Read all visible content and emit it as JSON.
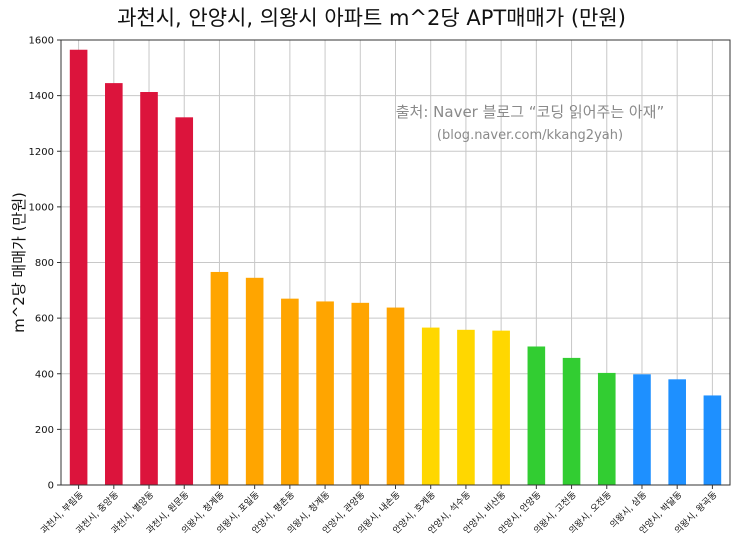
{
  "chart_data": {
    "type": "bar",
    "title": "과천시, 안양시, 의왕시 아파트 m^2당 APT매매가 (만원)",
    "xlabel": "",
    "ylabel": "m^2당 매매가 (만원)",
    "ylim": [
      0,
      1600
    ],
    "yticks": [
      0,
      200,
      400,
      600,
      800,
      1000,
      1200,
      1400,
      1600
    ],
    "grid": true,
    "categories": [
      "과천시, 부림동",
      "과천시, 중앙동",
      "과천시, 별양동",
      "과천시, 원문동",
      "의왕시, 청계동",
      "의왕시, 포일동",
      "안양시, 평촌동",
      "의왕시, 청계동",
      "안양시, 관양동",
      "의왕시, 내손동",
      "안양시, 호계동",
      "안양시, 석수동",
      "안양시, 비산동",
      "안양시, 안양동",
      "의왕시, 고천동",
      "의왕시, 오전동",
      "의왕시, 삼동",
      "안양시, 박달동",
      "의왕시, 왕곡동"
    ],
    "values": [
      1565,
      1445,
      1413,
      1322,
      766,
      745,
      670,
      660,
      655,
      638,
      566,
      558,
      555,
      498,
      457,
      403,
      398,
      380,
      322
    ],
    "colors": [
      "#dc143c",
      "#dc143c",
      "#dc143c",
      "#dc143c",
      "#ffa500",
      "#ffa500",
      "#ffa500",
      "#ffa500",
      "#ffa500",
      "#ffa500",
      "#ffd700",
      "#ffd700",
      "#ffd700",
      "#32cd32",
      "#32cd32",
      "#32cd32",
      "#1e90ff",
      "#1e90ff",
      "#1e90ff"
    ],
    "annotation": [
      "출처: Naver 블로그 “코딩 읽어주는 아재”",
      "(blog.naver.com/kkang2yah)"
    ]
  }
}
